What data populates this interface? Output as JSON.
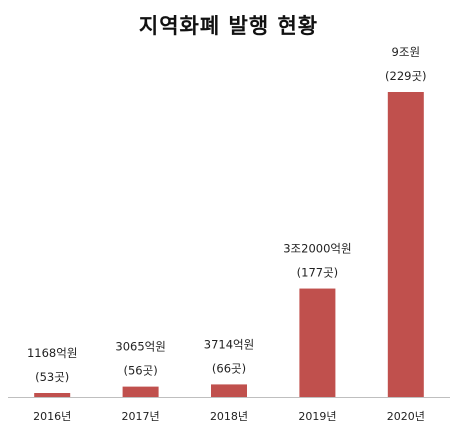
{
  "chart_data": {
    "type": "bar",
    "title": "지역화폐 발행 현황",
    "xlabel": "",
    "ylabel": "",
    "categories": [
      "2016년",
      "2017년",
      "2018년",
      "2019년",
      "2020년"
    ],
    "values": [
      1168,
      3065,
      3714,
      32000,
      90000
    ],
    "value_unit": "억원",
    "value_labels": [
      "1168억원",
      "3065억원",
      "3714억원",
      "3조2000억원",
      "9조원"
    ],
    "count_labels": [
      "(53곳)",
      "(56곳)",
      "(66곳)",
      "(177곳)",
      "(229곳)"
    ],
    "counts": [
      53,
      56,
      66,
      177,
      229
    ],
    "ylim": [
      0,
      90000
    ],
    "grid": false,
    "legend": "none",
    "bar_color": "#c0504d",
    "axis_color": "#bfbfbf"
  }
}
